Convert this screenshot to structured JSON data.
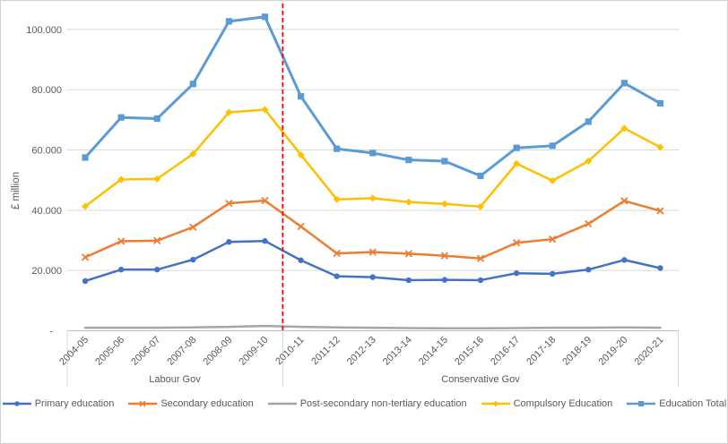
{
  "figure": {
    "background": "#FFFFFF",
    "border_color": "#D0D0D0",
    "gridline_color": "#D9D9D9",
    "axis_line_color": "#BFBFBF",
    "text_color": "#595959"
  },
  "chart_data": {
    "type": "line",
    "title": "",
    "xlabel": "",
    "ylabel": "£ million",
    "ylim": [
      0,
      108000
    ],
    "grid": "horizontal",
    "legend_position": "bottom",
    "yticks": {
      "values": [
        0,
        20000,
        40000,
        60000,
        80000,
        100000
      ],
      "labels": [
        "-",
        "20.000",
        "40.000",
        "60.000",
        "80.000",
        "100.000"
      ]
    },
    "categories": [
      "2004-05",
      "2005-06",
      "2006-07",
      "2007-08",
      "2008-09",
      "2009-10",
      "2010-11",
      "2011-12",
      "2012-13",
      "2013-14",
      "2014-15",
      "2015-16",
      "2016-17",
      "2017-18",
      "2018-19",
      "2019-20",
      "2020-21"
    ],
    "series": [
      {
        "name": "Primary education",
        "color": "#4472C4",
        "marker": "circle",
        "values": [
          16500,
          20300,
          20300,
          23600,
          29500,
          29800,
          23400,
          18100,
          17800,
          16800,
          16900,
          16800,
          19100,
          18900,
          20300,
          23500,
          20800
        ]
      },
      {
        "name": "Secondary education",
        "color": "#ED7D31",
        "marker": "x",
        "values": [
          24400,
          29700,
          29900,
          34400,
          42300,
          43200,
          34600,
          25700,
          26100,
          25600,
          24900,
          24000,
          29200,
          30400,
          35500,
          43100,
          39800
        ]
      },
      {
        "name": "Post-secondary non-tertiary education",
        "color": "#A5A5A5",
        "marker": "none",
        "values": [
          1000,
          1000,
          1000,
          1100,
          1300,
          1600,
          1300,
          1100,
          1000,
          900,
          800,
          800,
          900,
          1000,
          1000,
          1100,
          1000
        ]
      },
      {
        "name": "Compulsory Education",
        "color": "#FFC000",
        "marker": "diamond",
        "values": [
          41300,
          50200,
          50400,
          58700,
          72500,
          73400,
          58400,
          43600,
          44000,
          42700,
          42100,
          41200,
          55500,
          49800,
          56300,
          67200,
          60900
        ]
      },
      {
        "name": "Education Total",
        "color": "#5B9BD5",
        "marker": "square",
        "values": [
          57500,
          70800,
          70400,
          81900,
          102700,
          104200,
          77800,
          60400,
          59000,
          56700,
          56300,
          51400,
          60700,
          61400,
          69400,
          82200,
          75500
        ]
      }
    ],
    "annotations": {
      "divider": {
        "type": "vertical-dashed-line",
        "color": "#FF0000",
        "between": [
          "2009-10",
          "2010-11"
        ]
      },
      "groups": [
        {
          "label": "Labour Gov",
          "from": "2004-05",
          "to": "2009-10"
        },
        {
          "label": "Conservative Gov",
          "from": "2010-11",
          "to": "2020-21"
        }
      ]
    }
  }
}
